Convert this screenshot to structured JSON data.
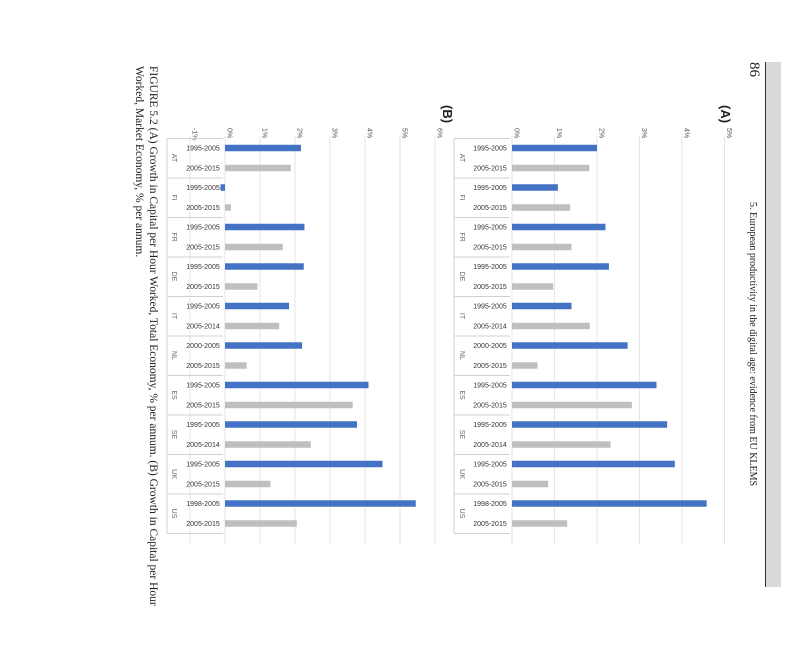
{
  "page": {
    "number": "86",
    "running_head": "5. European productivity in the digital age: evidence from EU KLEMS",
    "caption": "FIGURE 5.2   (A) Growth in Capital per Hour Worked, Total Economy, % per annum. (B) Growth in Capital per Hour Worked, Market Economy, % per annum."
  },
  "colors": {
    "first_period": "#4472c4",
    "second_period": "#bfbfbf",
    "grid": "#e6e6e6",
    "sidebar": "#d9d9d9"
  },
  "chart_data": [
    {
      "type": "bar",
      "title": "(A)",
      "ylim": [
        0,
        5
      ],
      "yticks": [
        "0%",
        "1%",
        "2%",
        "3%",
        "4%",
        "5%"
      ],
      "categories": [
        "AT",
        "FI",
        "FR",
        "DE",
        "IT",
        "NL",
        "ES",
        "SE",
        "UK",
        "US"
      ],
      "period_labels": [
        [
          "1995-2005",
          "2005-2015"
        ],
        [
          "1995-2005",
          "2005-2015"
        ],
        [
          "1995-2005",
          "2005-2015"
        ],
        [
          "1995-2005",
          "2005-2015"
        ],
        [
          "1995-2005",
          "2005-2014"
        ],
        [
          "2000-2005",
          "2005-2015"
        ],
        [
          "1995-2005",
          "2005-2015"
        ],
        [
          "1995-2005",
          "2005-2014"
        ],
        [
          "1995-2005",
          "2005-2015"
        ],
        [
          "1998-2005",
          "2005-2015"
        ]
      ],
      "first": [
        2.0,
        1.08,
        2.2,
        2.28,
        1.4,
        2.72,
        3.4,
        3.65,
        3.83,
        4.58
      ],
      "second": [
        1.82,
        1.37,
        1.4,
        0.97,
        1.83,
        0.6,
        2.82,
        2.32,
        0.85,
        1.3
      ]
    },
    {
      "type": "bar",
      "title": "(B)",
      "ylim": [
        -1,
        6
      ],
      "yticks": [
        "-1%",
        "0%",
        "1%",
        "2%",
        "3%",
        "4%",
        "5%",
        "6%"
      ],
      "categories": [
        "AT",
        "FI",
        "FR",
        "DE",
        "IT",
        "NL",
        "ES",
        "SE",
        "UK",
        "US"
      ],
      "period_labels": [
        [
          "1995-2005",
          "2005-2015"
        ],
        [
          "1995-2005",
          "2005-2015"
        ],
        [
          "1995-2005",
          "2005-2015"
        ],
        [
          "1995-2005",
          "2005-2015"
        ],
        [
          "1995-2005",
          "2005-2014"
        ],
        [
          "2000-2005",
          "2005-2015"
        ],
        [
          "1995-2005",
          "2005-2015"
        ],
        [
          "1995-2005",
          "2005-2014"
        ],
        [
          "1995-2005",
          "2005-2015"
        ],
        [
          "1998-2005",
          "2005-2015"
        ]
      ],
      "first": [
        2.17,
        -0.13,
        2.27,
        2.25,
        1.83,
        2.2,
        4.1,
        3.77,
        4.5,
        5.45
      ],
      "second": [
        1.88,
        0.17,
        1.65,
        0.93,
        1.55,
        0.62,
        3.65,
        2.45,
        1.3,
        2.05
      ]
    }
  ]
}
